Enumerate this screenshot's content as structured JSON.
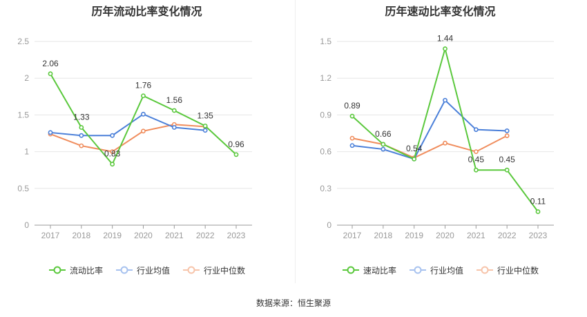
{
  "colors": {
    "main": "#5ac83c",
    "avg": "#4a7fd9",
    "median": "#f08c5c",
    "axis": "#999999",
    "grid": "#e6e6e6",
    "label": "#333333"
  },
  "source": "数据来源：恒生聚源",
  "chart_data": [
    {
      "type": "line",
      "title": "历年流动比率变化情况",
      "categories": [
        "2017",
        "2018",
        "2019",
        "2020",
        "2021",
        "2022",
        "2023"
      ],
      "ylim": [
        0,
        2.5
      ],
      "yticks": [
        "0",
        "0.5",
        "1",
        "1.5",
        "2",
        "2.5"
      ],
      "ytick_values": [
        0,
        0.5,
        1,
        1.5,
        2,
        2.5
      ],
      "grid": true,
      "legend_position": "bottom",
      "series": [
        {
          "name": "流动比率",
          "values": [
            2.06,
            1.33,
            0.83,
            1.76,
            1.56,
            1.35,
            0.96
          ],
          "labels": [
            "2.06",
            "1.33",
            "0.83",
            "1.76",
            "1.56",
            "1.35",
            "0.96"
          ]
        },
        {
          "name": "行业均值",
          "values": [
            1.26,
            1.22,
            1.22,
            1.51,
            1.33,
            1.29,
            null
          ]
        },
        {
          "name": "行业中位数",
          "values": [
            1.24,
            1.08,
            1.0,
            1.28,
            1.37,
            1.34,
            null
          ]
        }
      ]
    },
    {
      "type": "line",
      "title": "历年速动比率变化情况",
      "categories": [
        "2017",
        "2018",
        "2019",
        "2020",
        "2021",
        "2022",
        "2023"
      ],
      "ylim": [
        0,
        1.5
      ],
      "yticks": [
        "0",
        "0.3",
        "0.6",
        "0.9",
        "1.2",
        "1.5"
      ],
      "ytick_values": [
        0,
        0.3,
        0.6,
        0.9,
        1.2,
        1.5
      ],
      "grid": true,
      "legend_position": "bottom",
      "series": [
        {
          "name": "速动比率",
          "values": [
            0.89,
            0.66,
            0.54,
            1.44,
            0.45,
            0.45,
            0.11
          ],
          "labels": [
            "0.89",
            "0.66",
            "0.54",
            "1.44",
            "0.45",
            "0.45",
            "0.11"
          ]
        },
        {
          "name": "行业均值",
          "values": [
            0.65,
            0.62,
            0.54,
            1.02,
            0.78,
            0.77,
            null
          ]
        },
        {
          "name": "行业中位数",
          "values": [
            0.71,
            0.66,
            0.55,
            0.67,
            0.6,
            0.73,
            null
          ]
        }
      ]
    }
  ]
}
